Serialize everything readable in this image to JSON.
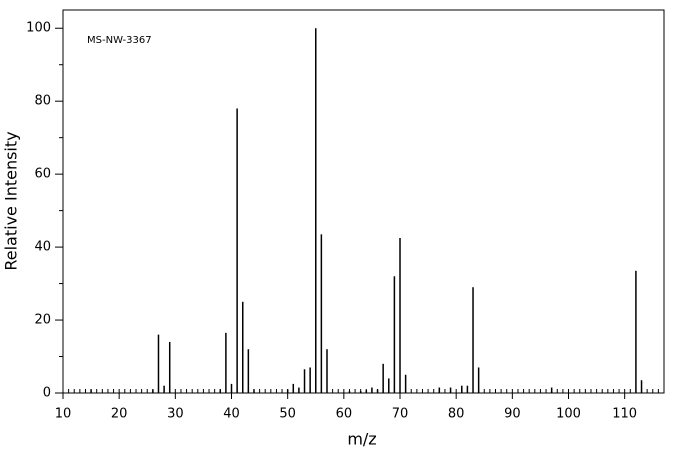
{
  "chart_data": {
    "type": "stem",
    "annotation": "MS-NW-3367",
    "x_label": "m/z",
    "y_label": "Relative Intensity",
    "color": "#000000",
    "x": [
      15,
      26,
      27,
      28,
      29,
      38,
      39,
      40,
      41,
      42,
      43,
      44,
      50,
      51,
      52,
      53,
      54,
      55,
      56,
      57,
      61,
      63,
      64,
      65,
      66,
      67,
      68,
      69,
      70,
      71,
      77,
      79,
      81,
      82,
      83,
      84,
      97,
      112,
      113
    ],
    "values": [
      1,
      1,
      16,
      2,
      14,
      1,
      16.5,
      2.5,
      78,
      25,
      12,
      1,
      1,
      2.5,
      1.5,
      6.5,
      7,
      100,
      43.5,
      12,
      0.5,
      0.5,
      0.8,
      1.5,
      1,
      8,
      4,
      32,
      42.5,
      5,
      1.5,
      1.5,
      2,
      2,
      29,
      7,
      1.5,
      33.5,
      3.5
    ],
    "xlim": [
      10,
      117
    ],
    "ylim": [
      0,
      105
    ],
    "xticks": [
      10,
      20,
      30,
      40,
      50,
      60,
      70,
      80,
      90,
      100,
      110
    ],
    "yticks": [
      0,
      20,
      40,
      60,
      80,
      100
    ]
  }
}
